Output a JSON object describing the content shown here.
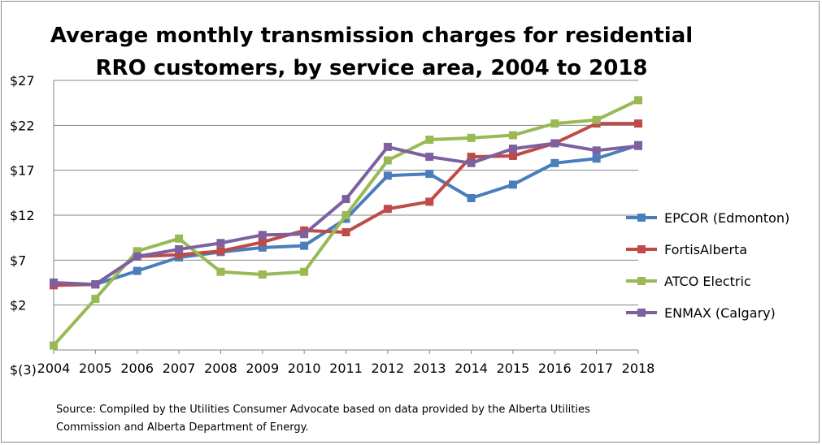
{
  "title_line1": "Average monthly transmission charges for residential",
  "title_line2": "RRO customers, by service area, 2004 to 2018",
  "source_line1": "Source: Compiled by the Utilities Consumer Advocate based on data provided by the Alberta Utilities",
  "source_line2": "Commission and Alberta Department of Energy.",
  "chart_data": {
    "type": "line",
    "title": "Average monthly transmission charges for residential RRO customers, by service area, 2004 to 2018",
    "xlabel": "",
    "ylabel": "",
    "x": [
      "2004",
      "2005",
      "2006",
      "2007",
      "2008",
      "2009",
      "2010",
      "2011",
      "2012",
      "2013",
      "2014",
      "2015",
      "2016",
      "2017",
      "2018"
    ],
    "ylim": [
      -3,
      27
    ],
    "yticks": [
      -3,
      2,
      7,
      12,
      17,
      22,
      27
    ],
    "ytick_labels": [
      "$(3)",
      "$2",
      "$7",
      "$12",
      "$17",
      "$22",
      "$27"
    ],
    "grid": true,
    "legend_position": "right",
    "series": [
      {
        "name": "EPCOR (Edmonton)",
        "color": "#4a7ebb",
        "values": [
          4.3,
          4.3,
          5.8,
          7.3,
          7.9,
          8.4,
          8.6,
          11.6,
          16.4,
          16.6,
          13.9,
          15.4,
          17.8,
          18.3,
          19.8
        ]
      },
      {
        "name": "FortisAlberta",
        "color": "#be4b48",
        "values": [
          4.2,
          4.3,
          7.4,
          7.6,
          8.0,
          9.0,
          10.3,
          10.1,
          12.7,
          13.5,
          18.5,
          18.6,
          20.0,
          22.2,
          22.2
        ]
      },
      {
        "name": "ATCO Electric",
        "color": "#98b954",
        "values": [
          -2.5,
          2.7,
          8.0,
          9.4,
          5.7,
          5.4,
          5.7,
          12.0,
          18.1,
          20.4,
          20.6,
          20.9,
          22.2,
          22.6,
          24.8
        ]
      },
      {
        "name": "ENMAX (Calgary)",
        "color": "#7d60a0",
        "values": [
          4.5,
          4.3,
          7.4,
          8.2,
          8.9,
          9.8,
          9.9,
          13.8,
          19.6,
          18.5,
          17.8,
          19.4,
          20.0,
          19.2,
          19.7
        ]
      }
    ]
  }
}
